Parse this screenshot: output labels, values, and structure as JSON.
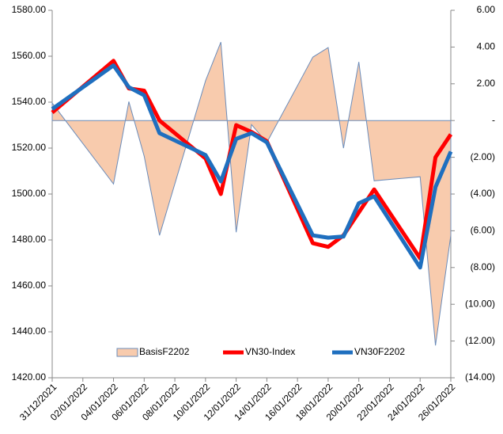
{
  "chart_data": {
    "type": "combo",
    "x": [
      "31/12/2021",
      "04/01/2022",
      "05/01/2022",
      "06/01/2022",
      "07/01/2022",
      "10/01/2022",
      "11/01/2022",
      "12/01/2022",
      "13/01/2022",
      "14/01/2022",
      "17/01/2022",
      "18/01/2022",
      "19/01/2022",
      "20/01/2022",
      "21/01/2022",
      "24/01/2022",
      "25/01/2022",
      "26/01/2022"
    ],
    "xlim": [
      "31/12/2021",
      "26/01/2022"
    ],
    "xticks": [
      "31/12/2021",
      "02/01/2022",
      "04/01/2022",
      "06/01/2022",
      "08/01/2022",
      "10/01/2022",
      "12/01/2022",
      "14/01/2022",
      "16/01/2022",
      "18/01/2022",
      "20/01/2022",
      "22/01/2022",
      "24/01/2022",
      "26/01/2022"
    ],
    "series": [
      {
        "name": "BasisF2202",
        "kind": "area",
        "axis": "y2",
        "color": "#f8cbad",
        "edge": "#6b8cba",
        "values": [
          0.95,
          -3.45,
          1.03,
          -1.94,
          -6.25,
          2.16,
          4.27,
          -6.08,
          -0.22,
          -1.2,
          3.45,
          3.97,
          -1.5,
          3.19,
          -3.28,
          -3.06,
          -12.24,
          -6.25
        ]
      },
      {
        "name": "VN30-Index",
        "kind": "line",
        "color": "#ff0000",
        "values": [
          1535.5,
          1558,
          1546,
          1545,
          1532,
          1515.5,
          1500,
          1530,
          1527,
          1523,
          1478.6,
          1477,
          1482,
          1492,
          1502,
          1472,
          1516,
          1526
        ]
      },
      {
        "name": "VN30F2202",
        "kind": "line",
        "color": "#1f6fbf",
        "values": [
          1537,
          1556,
          1546.5,
          1543,
          1526.5,
          1517,
          1505.5,
          1524,
          1526.5,
          1522.5,
          1482,
          1481,
          1481.5,
          1496,
          1499,
          1468,
          1503,
          1518.5
        ]
      }
    ],
    "ylim": [
      1420,
      1580
    ],
    "yticks": [
      {
        "value": 1420,
        "label": "1420.00"
      },
      {
        "value": 1440,
        "label": "1440.00"
      },
      {
        "value": 1460,
        "label": "1460.00"
      },
      {
        "value": 1480,
        "label": "1480.00"
      },
      {
        "value": 1500,
        "label": "1500.00"
      },
      {
        "value": 1520,
        "label": "1520.00"
      },
      {
        "value": 1540,
        "label": "1540.00"
      },
      {
        "value": 1560,
        "label": "1560.00"
      },
      {
        "value": 1580,
        "label": "1580.00"
      }
    ],
    "y2lim": [
      -14,
      6
    ],
    "y2ticks": [
      {
        "value": -14,
        "label": "(14.00)"
      },
      {
        "value": -12,
        "label": "(12.00)"
      },
      {
        "value": -10,
        "label": "(10.00)"
      },
      {
        "value": -8,
        "label": "(8.00)"
      },
      {
        "value": -6,
        "label": "(6.00)"
      },
      {
        "value": -4,
        "label": "(4.00)"
      },
      {
        "value": -2,
        "label": "(2.00)"
      },
      {
        "value": 0,
        "label": "-"
      },
      {
        "value": 2,
        "label": "2.00"
      },
      {
        "value": 4,
        "label": "4.00"
      },
      {
        "value": 6,
        "label": "6.00"
      }
    ]
  }
}
